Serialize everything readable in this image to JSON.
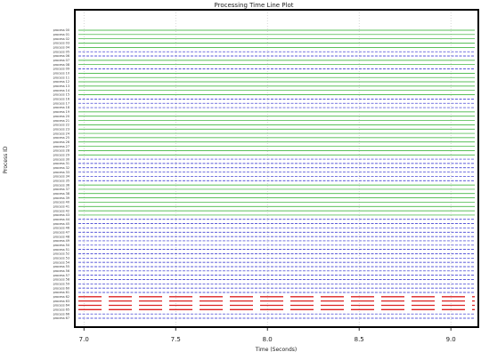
{
  "chart_data": {
    "type": "line",
    "title": "Processing Time Line Plot",
    "xlabel": "Time (Seconds)",
    "ylabel": "Process ID",
    "xlim": [
      6.96,
      9.14
    ],
    "x_ticks": [
      7.0,
      7.5,
      8.0,
      8.5,
      9.0
    ],
    "x_tick_labels": [
      "7.0",
      "7.5",
      "8.0",
      "8.5",
      "9.0"
    ],
    "grid": true,
    "row_count": 68,
    "row_label_prefix": "process",
    "colors": {
      "compute": "#22aa22",
      "communicate": "#2222cc",
      "io": "#dd2222",
      "grid": "#bbbbbb"
    },
    "rows": [
      "green",
      "green",
      "green",
      "green",
      "green",
      "blue",
      "blue",
      "green",
      "green",
      "blue",
      "green",
      "green",
      "green",
      "green",
      "green",
      "green",
      "blue",
      "blue",
      "blue",
      "green",
      "green",
      "green",
      "green",
      "green",
      "green",
      "green",
      "green",
      "green",
      "green",
      "green",
      "blue",
      "blue",
      "blue",
      "blue",
      "blue",
      "blue",
      "green",
      "green",
      "green",
      "green",
      "green",
      "green",
      "green",
      "green",
      "blue",
      "blue",
      "blue",
      "blue",
      "blue",
      "blue",
      "blue",
      "blue",
      "blue",
      "blue",
      "blue",
      "blue",
      "blue",
      "blue",
      "blue",
      "blue",
      "blue",
      "blue",
      "red",
      "red",
      "red",
      "red",
      "blue",
      "blue"
    ]
  }
}
